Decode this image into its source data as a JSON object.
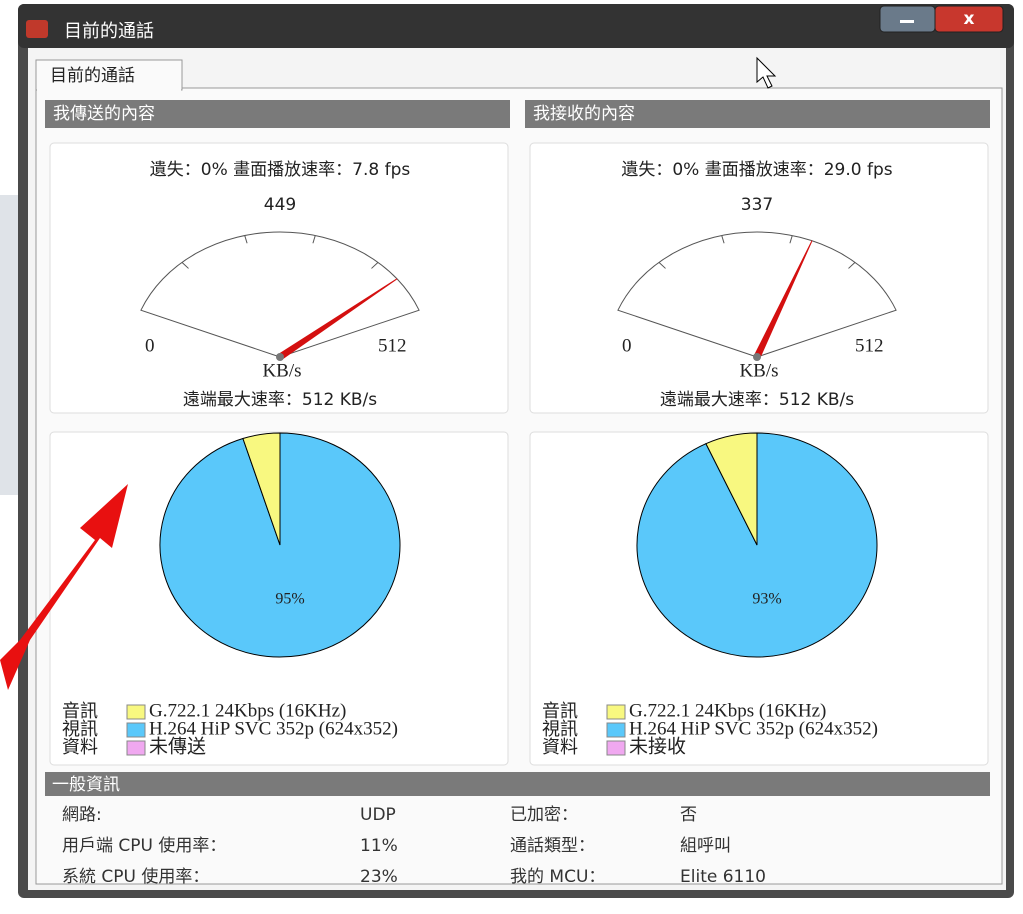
{
  "window": {
    "title": "目前的通話"
  },
  "tab": "目前的通話",
  "panels": [
    {
      "header": "我傳送的內容",
      "stats": "遺失：0% 畫面播放速率：7.8 fps",
      "gauge": {
        "value": 449,
        "min": 0,
        "max": 512,
        "unit": "KB/s"
      },
      "max_rate": "遠端最大速率：512 KB/s",
      "pie": {
        "audio": 5,
        "video": {
          "value": 95,
          "label": "95%"
        }
      },
      "legend": [
        {
          "label": "音訊",
          "color": "#f8f880",
          "text": "G.722.1 24Kbps (16KHz)"
        },
        {
          "label": "視訊",
          "color": "#5ac8fa",
          "text": "H.264 HiP SVC 352p (624x352)"
        },
        {
          "label": "資料",
          "color": "#f0a8f0",
          "text": "未傳送"
        }
      ]
    },
    {
      "header": "我接收的內容",
      "stats": "遺失：0% 畫面播放速率：29.0 fps",
      "gauge": {
        "value": 337,
        "min": 0,
        "max": 512,
        "unit": "KB/s"
      },
      "max_rate": "遠端最大速率：512 KB/s",
      "pie": {
        "audio": 7,
        "video": {
          "value": 93,
          "label": "93%"
        }
      },
      "legend": [
        {
          "label": "音訊",
          "color": "#f8f880",
          "text": "G.722.1 24Kbps (16KHz)"
        },
        {
          "label": "視訊",
          "color": "#5ac8fa",
          "text": "H.264 HiP SVC 352p (624x352)"
        },
        {
          "label": "資料",
          "color": "#f0a8f0",
          "text": "未接收"
        }
      ]
    }
  ],
  "general": {
    "header": "一般資訊",
    "rows": [
      [
        "網路:",
        "UDP",
        "已加密：",
        "否"
      ],
      [
        "用戶端 CPU 使用率：",
        "11%",
        "通話類型：",
        "組呼叫"
      ],
      [
        "系統 CPU 使用率：",
        "23%",
        "我的 MCU：",
        "Elite 6110"
      ]
    ]
  }
}
